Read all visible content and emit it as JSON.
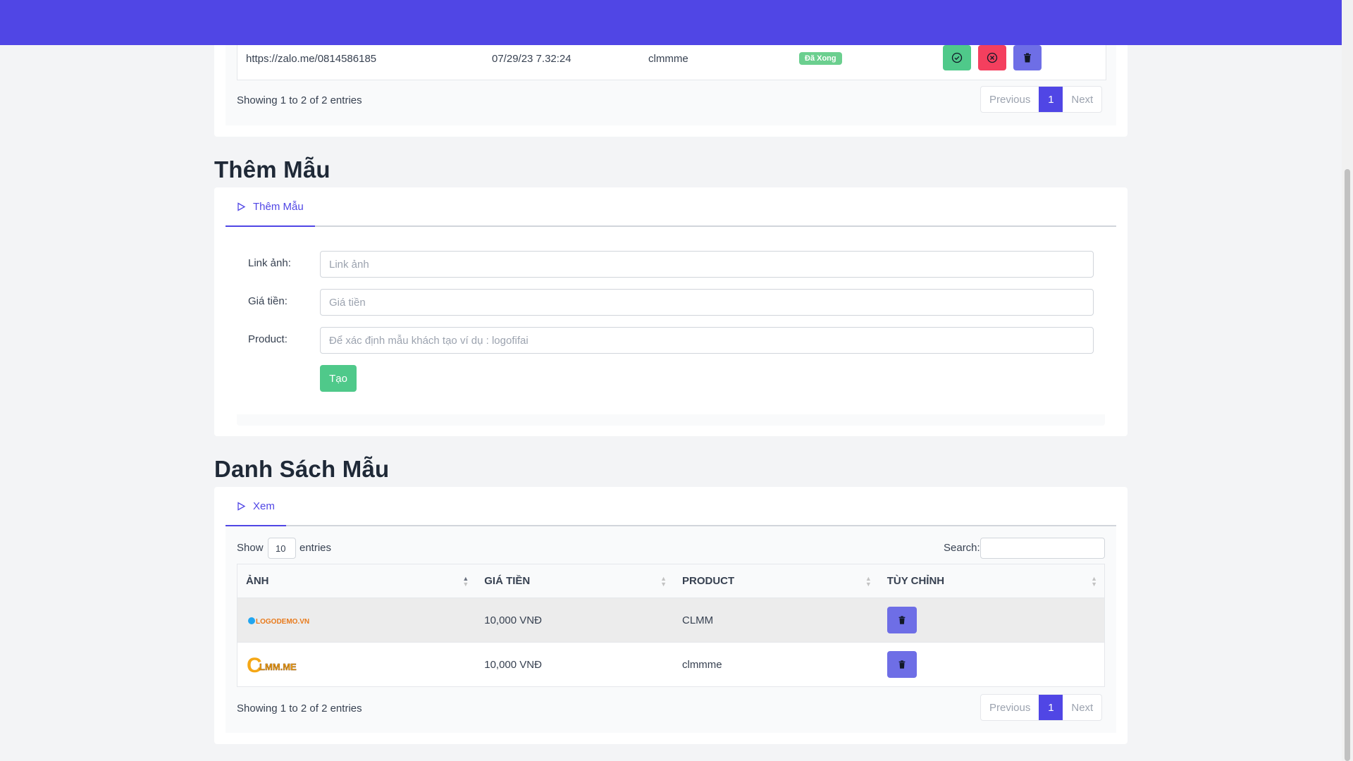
{
  "orders": {
    "row": {
      "link": "https://zalo.me/0814586185",
      "date": "07/29/23 7.32:24",
      "product": "clmmme",
      "status": "Đã Xong"
    },
    "showing": "Showing 1 to 2 of 2 entries",
    "pager": {
      "previous": "Previous",
      "page": "1",
      "next": "Next"
    }
  },
  "add_template": {
    "heading": "Thêm Mẫu",
    "tab": "Thêm Mẫu",
    "fields": {
      "image_label": "Link ảnh:",
      "image_placeholder": "Link ảnh",
      "price_label": "Giá tiền:",
      "price_placeholder": "Giá tiền",
      "product_label": "Product:",
      "product_placeholder": "Để xác định mẫu khách tạo ví dụ : logofifai"
    },
    "create_label": "Tạo"
  },
  "template_list": {
    "heading": "Danh Sách Mẫu",
    "tab": "Xem",
    "show_label": "Show",
    "show_value": "10",
    "entries_label": "entries",
    "search_label": "Search:",
    "columns": [
      "ẢNH",
      "GIÁ TIỀN",
      "PRODUCT",
      "TÙY CHỈNH"
    ],
    "rows": [
      {
        "image_text": "LOGODEMO.VN",
        "price": "10,000 VNĐ",
        "product": "CLMM"
      },
      {
        "image_text": "LMM.ME",
        "price": "10,000 VNĐ",
        "product": "clmmme"
      }
    ],
    "showing": "Showing 1 to 2 of 2 entries",
    "pager": {
      "previous": "Previous",
      "page": "1",
      "next": "Next"
    }
  },
  "colors": {
    "accent": "#5046e5",
    "success": "#4fc98a",
    "danger": "#f43f5e",
    "indigo": "#6e6ee6"
  }
}
